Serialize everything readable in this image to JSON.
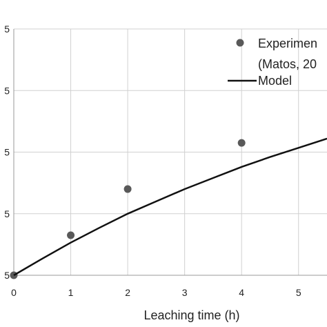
{
  "chart_data": {
    "type": "scatter",
    "title": "",
    "xlabel": "Leaching time (h)",
    "ylabel": "",
    "xlim": [
      0,
      5.5
    ],
    "ylim": [
      0,
      4.0
    ],
    "x_ticks": [
      "0",
      "1",
      "2",
      "3",
      "4",
      "5"
    ],
    "y_tick_fragments": [
      "5",
      "5",
      "5",
      "5",
      "5"
    ],
    "grid": true,
    "legend_position": "top-right",
    "series": [
      {
        "name": "Experimen (Matos, 20",
        "legend_line1": "Experimen",
        "legend_line2": "(Matos, 20",
        "kind": "points",
        "color": "#595959",
        "x": [
          0,
          1,
          2,
          4
        ],
        "y": [
          0,
          0.65,
          1.4,
          2.15
        ]
      },
      {
        "name": "Model",
        "kind": "line",
        "color": "#111111",
        "x": [
          0,
          0.5,
          1,
          1.5,
          2,
          2.5,
          3,
          3.5,
          4,
          4.5,
          5,
          5.5
        ],
        "y": [
          0,
          0.27,
          0.53,
          0.77,
          1.0,
          1.2,
          1.4,
          1.58,
          1.76,
          1.92,
          2.07,
          2.22
        ]
      }
    ]
  }
}
